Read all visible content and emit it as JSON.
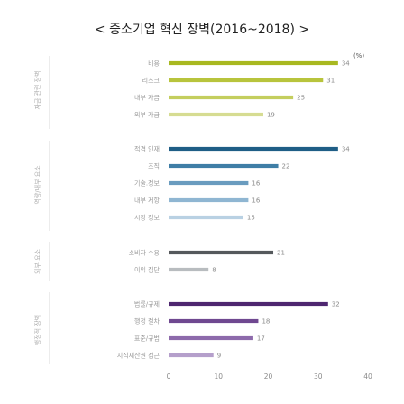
{
  "chart_data": {
    "type": "bar",
    "orientation": "horizontal",
    "title": "< 중소기업 혁신 장벽(2016~2018) >",
    "unit": "(%)",
    "xlim": [
      0,
      40
    ],
    "xticks": [
      "0",
      "10",
      "20",
      "30",
      "40"
    ],
    "groups": [
      {
        "name": "자금 관련 장벽",
        "items": [
          {
            "label": "비용",
            "value": 34,
            "color": "#a8b820"
          },
          {
            "label": "리스크",
            "value": 31,
            "color": "#b8c43c"
          },
          {
            "label": "내부 자금",
            "value": 25,
            "color": "#c4ce5e"
          },
          {
            "label": "외부 자금",
            "value": 19,
            "color": "#d6dc92"
          }
        ]
      },
      {
        "name": "역량/내부 요소",
        "items": [
          {
            "label": "적격 인재",
            "value": 34,
            "color": "#1f5e86"
          },
          {
            "label": "조직",
            "value": 22,
            "color": "#3f7ea6"
          },
          {
            "label": "기술.정보",
            "value": 16,
            "color": "#6a9cbf"
          },
          {
            "label": "내부 저항",
            "value": 16,
            "color": "#8fb6d2"
          },
          {
            "label": "시장 정보",
            "value": 15,
            "color": "#b9d1e3"
          }
        ]
      },
      {
        "name": "외부 요소",
        "items": [
          {
            "label": "소비자 수용",
            "value": 21,
            "color": "#55595c"
          },
          {
            "label": "이익 집단",
            "value": 8,
            "color": "#b8bcbf"
          }
        ]
      },
      {
        "name": "행정적 장벽",
        "items": [
          {
            "label": "법률/규제",
            "value": 32,
            "color": "#4e2670"
          },
          {
            "label": "행정 절차",
            "value": 18,
            "color": "#6f4890"
          },
          {
            "label": "표준/규범",
            "value": 17,
            "color": "#8d6aab"
          },
          {
            "label": "지식재산권 접근",
            "value": 9,
            "color": "#b59fcb"
          }
        ]
      }
    ]
  }
}
